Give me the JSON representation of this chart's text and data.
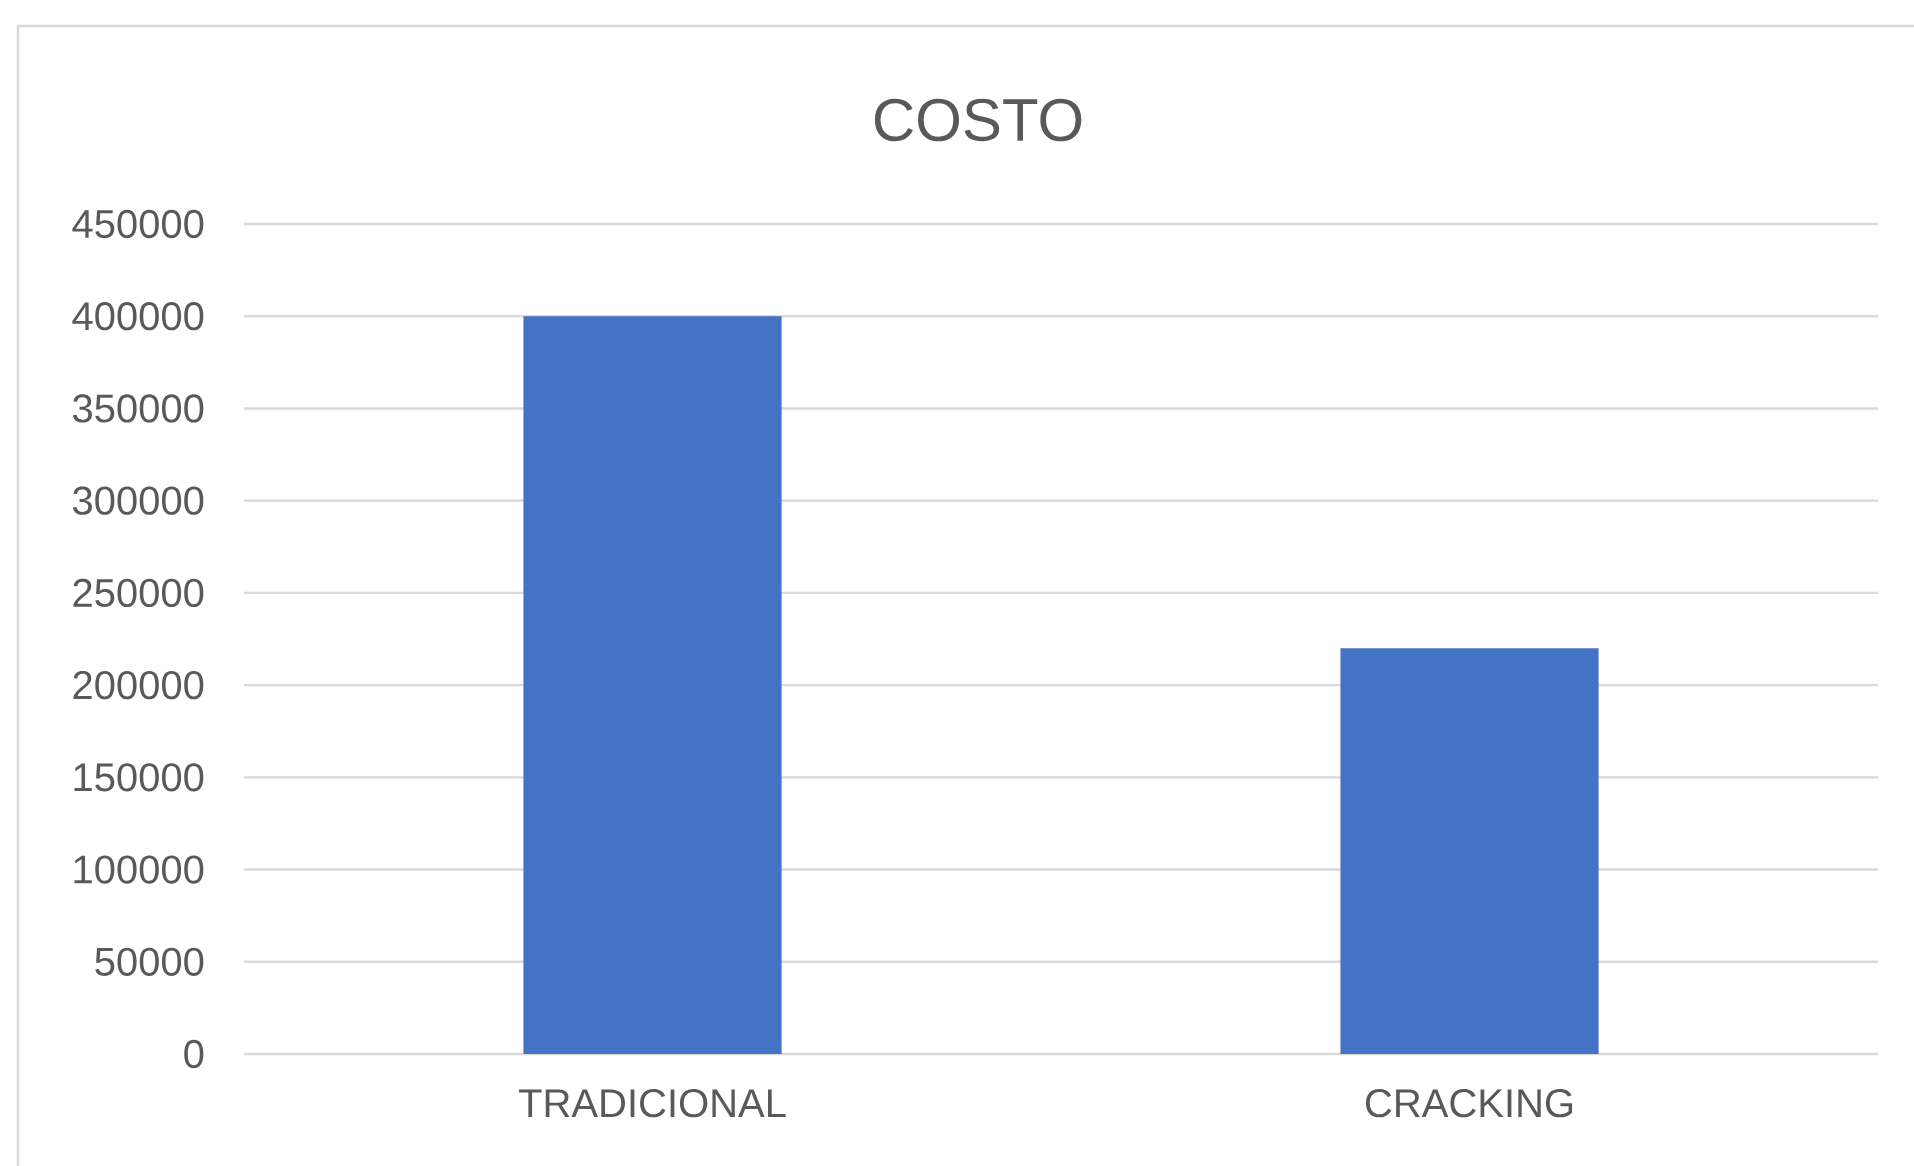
{
  "chart_data": {
    "type": "bar",
    "title": "COSTO",
    "categories": [
      "TRADICIONAL",
      "CRACKING"
    ],
    "values": [
      400000,
      220000
    ],
    "color": "#4472c4",
    "ylim": [
      0,
      450000
    ],
    "yticks": [
      0,
      50000,
      100000,
      150000,
      200000,
      250000,
      300000,
      350000,
      400000,
      450000
    ],
    "grid": "y"
  }
}
